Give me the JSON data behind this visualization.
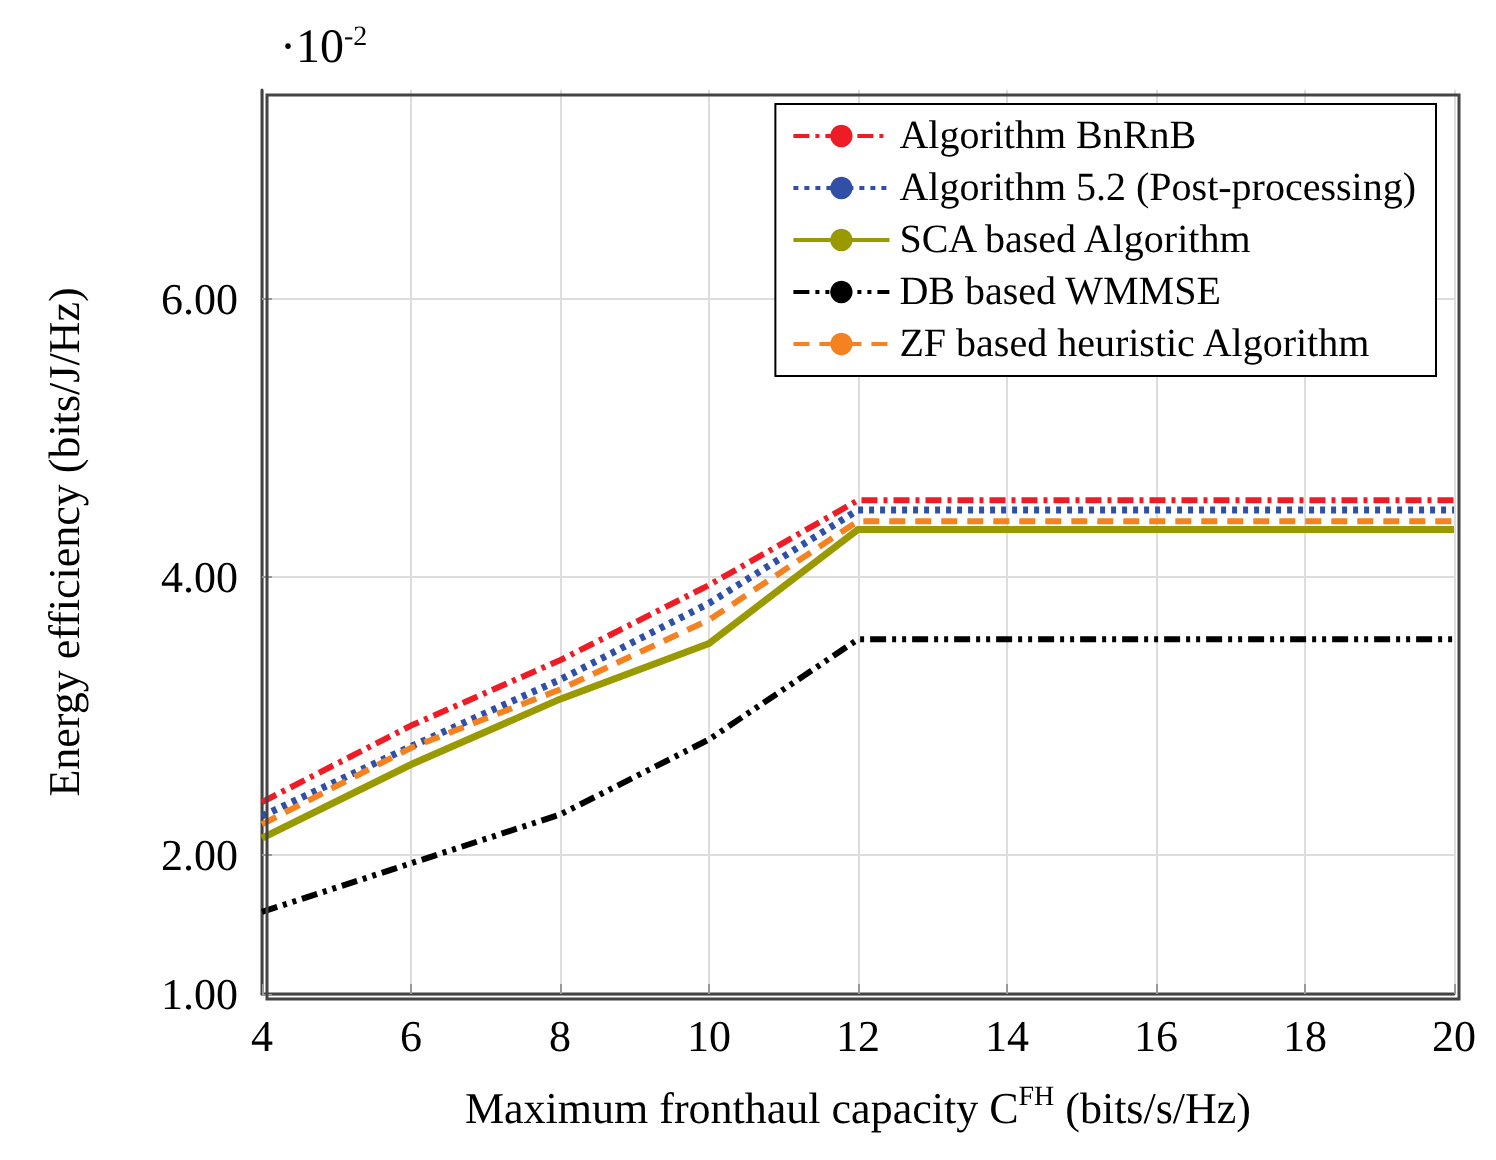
{
  "chart_data": {
    "type": "line",
    "xlabel": "Maximum fronthaul capacity C$^{FH}$ (bits/s/Hz)",
    "ylabel": "Energy efficiency (bits/J/Hz)",
    "annotations": [
      "·10$^{-2}$"
    ],
    "x": [
      4,
      6,
      8,
      10,
      12,
      14,
      16,
      18,
      20
    ],
    "series": [
      {
        "name": "Algorithm BnRnB",
        "color": "#ee1c25",
        "line_style": "dashdot",
        "values": [
          2.38,
          2.93,
          3.4,
          3.94,
          4.55,
          4.55,
          4.55,
          4.55,
          4.55
        ]
      },
      {
        "name": "Algorithm 5.2 (Post-processing)",
        "color": "#3050a8",
        "line_style": "dotted",
        "values": [
          2.28,
          2.78,
          3.26,
          3.81,
          4.48,
          4.48,
          4.48,
          4.48,
          4.48
        ]
      },
      {
        "name": "SCA based Algorithm",
        "color": "#999900",
        "line_style": "solid",
        "values": [
          2.12,
          2.65,
          3.12,
          3.52,
          4.34,
          4.34,
          4.34,
          4.34,
          4.34
        ]
      },
      {
        "name": "DB based WMMSE",
        "color": "#000000",
        "line_style": "dashdotdot",
        "values": [
          1.59,
          1.94,
          2.29,
          2.83,
          3.55,
          3.55,
          3.55,
          3.55,
          3.55
        ]
      },
      {
        "name": "ZF based heuristic Algorithm",
        "color": "#f58220",
        "line_style": "dashed",
        "values": [
          2.22,
          2.77,
          3.19,
          3.69,
          4.4,
          4.4,
          4.4,
          4.4,
          4.4
        ]
      }
    ],
    "xlim": [
      4,
      20
    ],
    "xticks": [
      4,
      6,
      8,
      10,
      12,
      14,
      16,
      18,
      20
    ],
    "ylim": [
      1,
      7.5
    ],
    "yticks": [
      {
        "value": 1,
        "label": "1.00"
      },
      {
        "value": 2,
        "label": "2.00"
      },
      {
        "value": 4,
        "label": "4.00"
      },
      {
        "value": 6,
        "label": "6.00"
      }
    ],
    "grid": true,
    "legend": "top right",
    "marker": "none"
  }
}
